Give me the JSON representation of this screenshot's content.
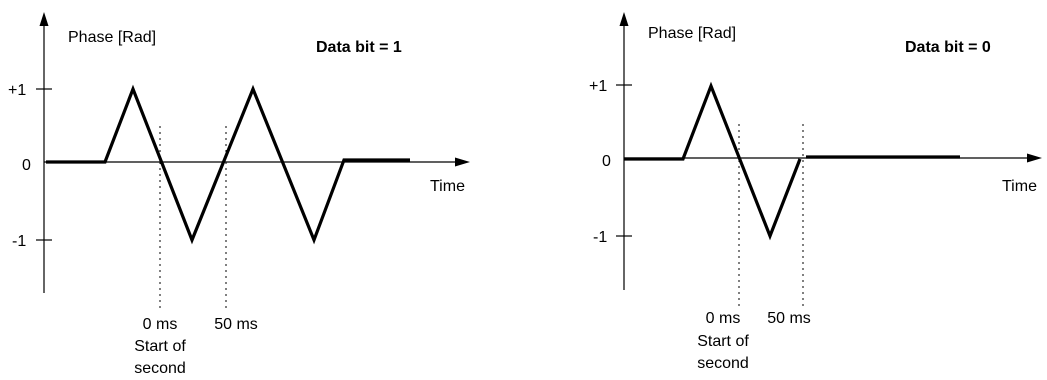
{
  "panels": [
    {
      "y_axis_label": "Phase [Rad]",
      "x_axis_label": "Time",
      "title": "Data bit = 1",
      "y_ticks": [
        "+1",
        "0",
        "-1"
      ],
      "marker_labels": [
        "0 ms",
        "50 ms"
      ],
      "start_caption_line1": "Start of",
      "start_caption_line2": "second"
    },
    {
      "y_axis_label": "Phase [Rad]",
      "x_axis_label": "Time",
      "title": "Data bit = 0",
      "y_ticks": [
        "+1",
        "0",
        "-1"
      ],
      "marker_labels": [
        "0 ms",
        "50 ms"
      ],
      "start_caption_line1": "Start of",
      "start_caption_line2": "second"
    }
  ],
  "colors": {
    "line": "#000000",
    "background": "#ffffff"
  }
}
